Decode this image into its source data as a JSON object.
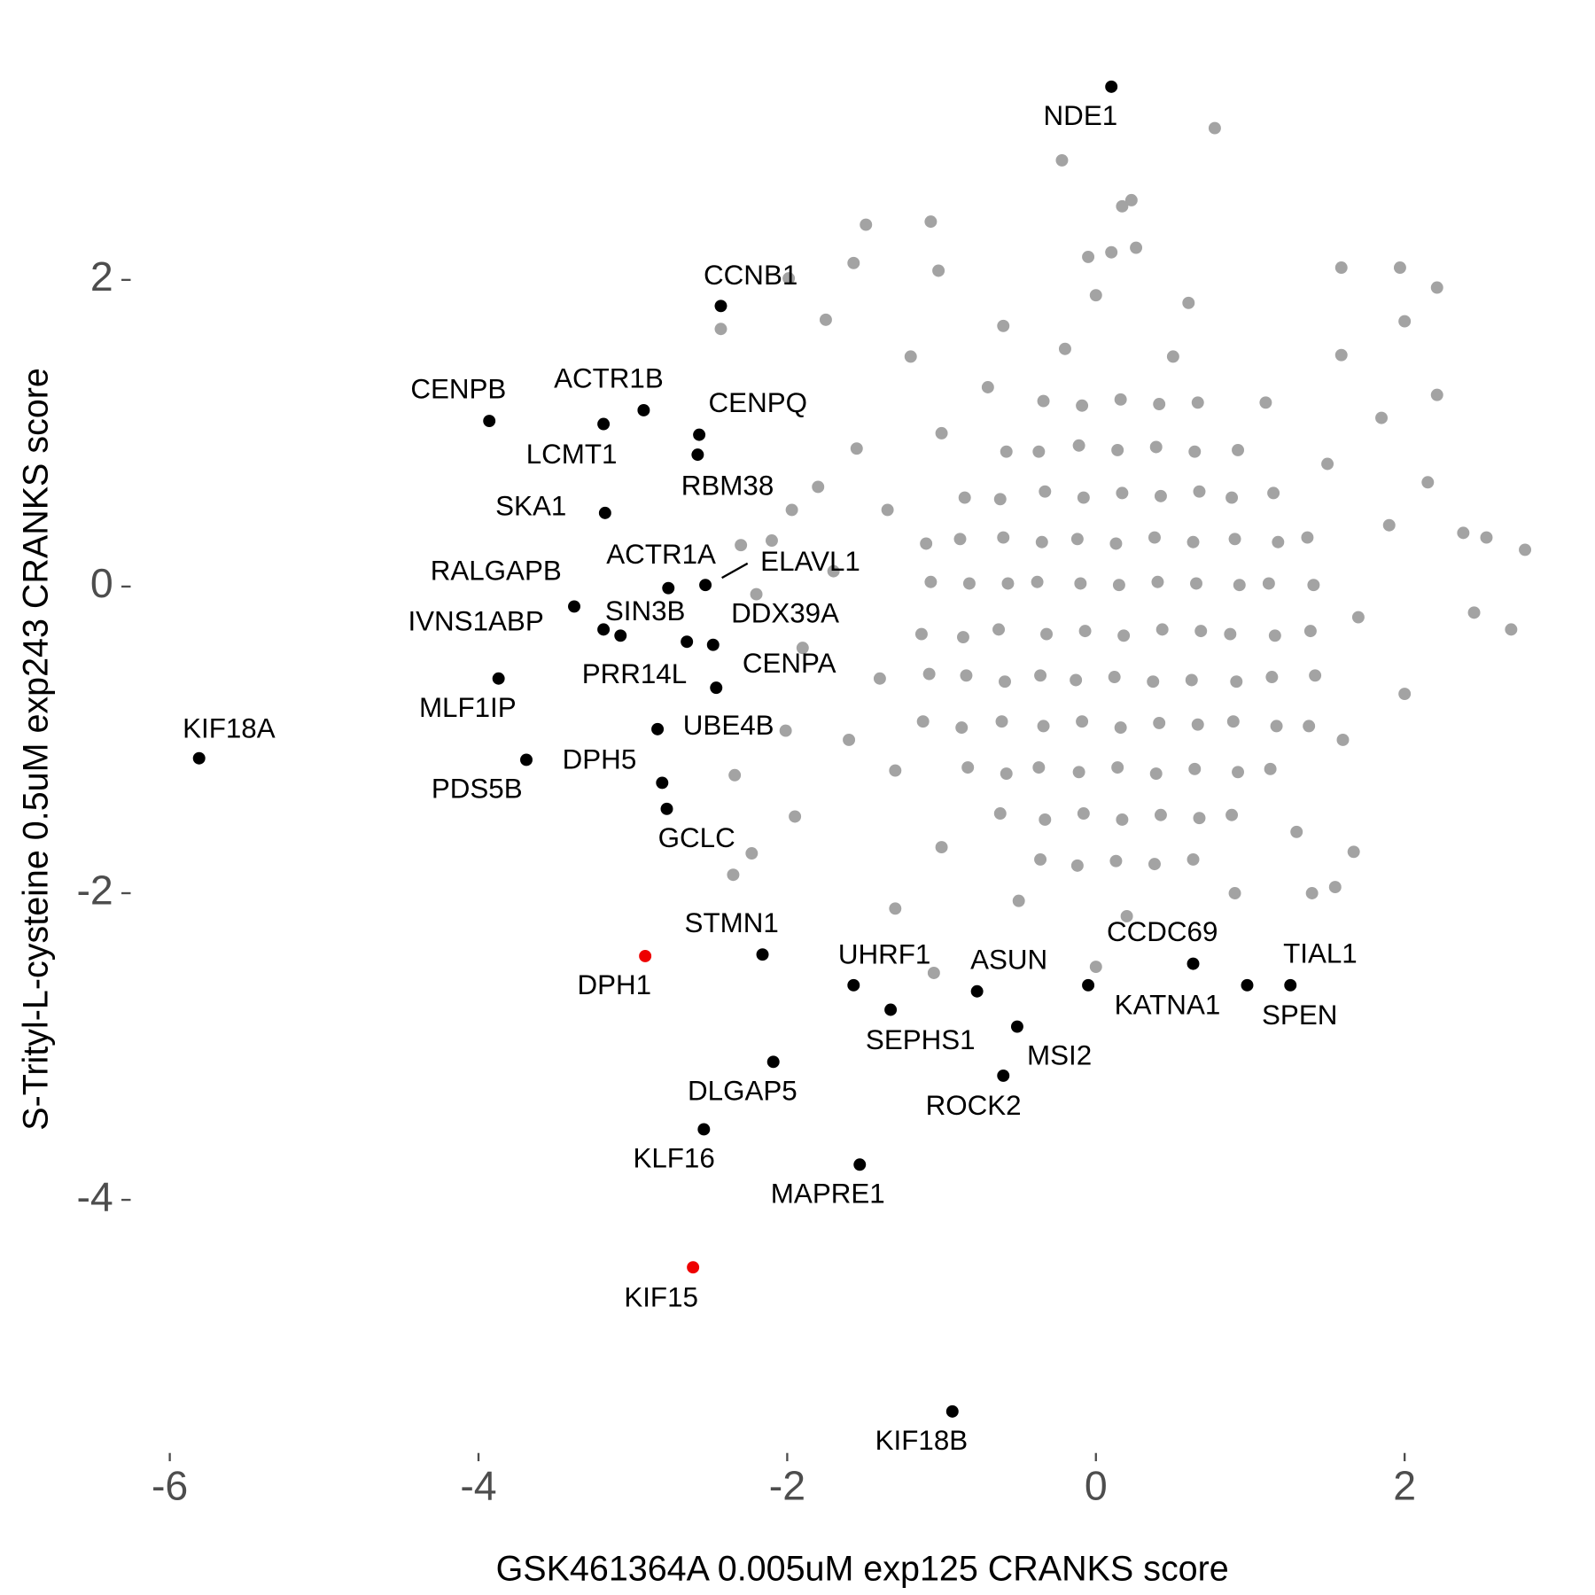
{
  "chart_data": {
    "type": "scatter",
    "x_label": "GSK461364A 0.005uM exp125 CRANKS score",
    "y_label": "S-Trityl-L-cysteine 0.5uM exp243 CRANKS score",
    "xlim": [
      -6.2,
      2.85
    ],
    "ylim": [
      -5.5,
      3.4
    ],
    "xticks": [
      -6,
      -4,
      -2,
      0,
      2
    ],
    "yticks": [
      -4,
      -2,
      0,
      2
    ],
    "grid": false,
    "series": [
      {
        "color": "#a3a3a3",
        "x": [
          -1.12,
          -1.08,
          -1.13,
          -1.07,
          -1.1,
          -0.83,
          -0.87,
          -0.84,
          -0.86,
          -0.82,
          -0.88,
          -0.85,
          -0.62,
          -0.58,
          -0.61,
          -0.59,
          -0.63,
          -0.57,
          -0.6,
          -0.62,
          -0.58,
          -0.36,
          -0.33,
          -0.37,
          -0.34,
          -0.36,
          -0.32,
          -0.38,
          -0.35,
          -0.33,
          -0.37,
          -0.34,
          -0.12,
          -0.08,
          -0.11,
          -0.09,
          -0.13,
          -0.07,
          -0.1,
          -0.12,
          -0.08,
          -0.11,
          -0.09,
          0.13,
          0.17,
          0.14,
          0.16,
          0.12,
          0.18,
          0.15,
          0.13,
          0.17,
          0.14,
          0.16,
          0.38,
          0.42,
          0.39,
          0.41,
          0.37,
          0.43,
          0.4,
          0.38,
          0.42,
          0.39,
          0.41,
          0.63,
          0.67,
          0.64,
          0.66,
          0.62,
          0.68,
          0.65,
          0.63,
          0.67,
          0.64,
          0.66,
          0.88,
          0.92,
          0.89,
          0.91,
          0.87,
          0.93,
          0.9,
          0.88,
          0.92,
          1.13,
          1.17,
          1.14,
          1.16,
          1.12,
          1.18,
          1.15,
          1.38,
          1.42,
          1.39,
          1.41,
          1.37,
          0.77,
          -0.22,
          0.23,
          0.17,
          -1.49,
          -1.07,
          0.26,
          0.1,
          -0.05,
          -1.57,
          -1.02,
          1.59,
          1.97,
          2.21,
          -1.99,
          -2.43,
          -1.75,
          2.78,
          2.69,
          2.53,
          2.38,
          2.15,
          2.45,
          -2.34,
          -2.35,
          -2.23,
          -1.05,
          0.0,
          1.55,
          1.67,
          -1.95,
          -2.3,
          -2.2,
          -1.97,
          -1.8,
          -2.01,
          2.21,
          2.0,
          1.59,
          -1.4,
          -1.35,
          -1.3,
          -1.0,
          -0.7,
          -0.2,
          0.5,
          1.1,
          1.5,
          1.7,
          1.6,
          1.3,
          0.9,
          0.2,
          -0.5,
          -1.0,
          -1.6,
          -1.7,
          -1.55,
          -1.2,
          1.9,
          2.0,
          1.85,
          -1.9,
          0.0,
          0.6,
          -0.6,
          1.4,
          -1.3,
          -2.1
        ],
        "y": [
          -0.88,
          -0.57,
          -0.31,
          0.03,
          0.28,
          -1.18,
          -0.92,
          -0.58,
          -0.33,
          0.02,
          0.31,
          0.58,
          -1.48,
          -1.22,
          -0.88,
          -0.62,
          -0.28,
          0.02,
          0.32,
          0.57,
          0.88,
          -1.78,
          -1.52,
          -1.18,
          -0.91,
          -0.58,
          -0.31,
          0.03,
          0.29,
          0.62,
          0.88,
          1.21,
          -1.82,
          -1.48,
          -1.21,
          -0.88,
          -0.61,
          -0.29,
          0.02,
          0.31,
          0.58,
          0.92,
          1.18,
          -1.79,
          -1.52,
          -1.18,
          -0.92,
          -0.59,
          -0.32,
          0.01,
          0.28,
          0.61,
          0.89,
          1.22,
          -1.81,
          -1.49,
          -1.22,
          -0.89,
          -0.62,
          -0.28,
          0.03,
          0.32,
          0.59,
          0.91,
          1.19,
          -1.78,
          -1.51,
          -1.19,
          -0.9,
          -0.61,
          -0.29,
          0.02,
          0.29,
          0.62,
          0.88,
          1.2,
          -1.49,
          -1.21,
          -0.88,
          -0.62,
          -0.31,
          0.01,
          0.31,
          0.58,
          0.89,
          -1.19,
          -0.91,
          -0.59,
          -0.32,
          0.02,
          0.29,
          0.61,
          -0.91,
          -0.58,
          -0.29,
          0.01,
          0.32,
          2.99,
          2.78,
          2.52,
          2.48,
          2.36,
          2.38,
          2.21,
          2.18,
          2.15,
          2.11,
          2.06,
          2.08,
          2.08,
          1.95,
          2.01,
          1.68,
          1.74,
          0.24,
          -0.28,
          0.32,
          0.35,
          0.68,
          -0.17,
          -1.23,
          -1.88,
          -1.74,
          -2.52,
          -2.48,
          -1.96,
          -1.73,
          -1.5,
          0.27,
          -0.05,
          0.5,
          0.65,
          -0.94,
          1.25,
          1.73,
          1.51,
          -0.6,
          0.5,
          -1.2,
          1.0,
          1.3,
          1.55,
          1.5,
          1.2,
          0.8,
          -0.2,
          -1.0,
          -1.6,
          -2.0,
          -2.15,
          -2.05,
          -1.7,
          -1.0,
          0.1,
          0.9,
          1.5,
          0.4,
          -0.7,
          1.1,
          -0.4,
          1.9,
          1.85,
          1.7,
          -2.0,
          -2.1,
          0.3
        ]
      },
      {
        "color": "#000000",
        "labels": [
          "NDE1",
          "CCNB1",
          "CENPB",
          "ACTR1B",
          "LCMT1",
          "CENPQ",
          "RBM38",
          "SKA1",
          "RALGAPB",
          "ACTR1A",
          "ELAVL1",
          "IVNS1ABP",
          "SIN3B",
          "PRR14L",
          "DDX39A",
          "MLF1IP",
          "CENPA",
          "UBE4B",
          "KIF18A",
          "PDS5B",
          "DPH5",
          "GCLC",
          "STMN1",
          "UHRF1",
          "SEPHS1",
          "ASUN",
          "MSI2",
          "ROCK2",
          "KATNA1",
          "CCDC69",
          "SPEN",
          "TIAL1",
          "DLGAP5",
          "KLF16",
          "MAPRE1",
          "KIF18B"
        ],
        "x": [
          0.1,
          -2.43,
          -3.93,
          -2.93,
          -3.19,
          -2.57,
          -2.58,
          -3.18,
          -3.38,
          -2.77,
          -2.53,
          -3.19,
          -3.08,
          -2.65,
          -2.48,
          -3.87,
          -2.46,
          -2.84,
          -5.81,
          -3.69,
          -2.81,
          -2.78,
          -2.16,
          -1.57,
          -1.33,
          -0.77,
          -0.51,
          -0.6,
          -0.05,
          0.63,
          0.98,
          1.26,
          -2.09,
          -2.54,
          -1.53,
          -0.93
        ],
        "y": [
          3.26,
          1.83,
          1.08,
          1.15,
          1.06,
          0.99,
          0.86,
          0.48,
          -0.13,
          -0.01,
          0.01,
          -0.28,
          -0.32,
          -0.36,
          -0.38,
          -0.6,
          -0.66,
          -0.93,
          -1.12,
          -1.13,
          -1.28,
          -1.45,
          -2.4,
          -2.6,
          -2.76,
          -2.64,
          -2.87,
          -3.19,
          -2.6,
          -2.46,
          -2.6,
          -2.6,
          -3.1,
          -3.54,
          -3.77,
          -5.38
        ]
      },
      {
        "color": "#ee0000",
        "labels": [
          "DPH1",
          "KIF15"
        ],
        "x": [
          -2.92,
          -2.61
        ],
        "y": [
          -2.41,
          -4.44
        ]
      }
    ]
  }
}
